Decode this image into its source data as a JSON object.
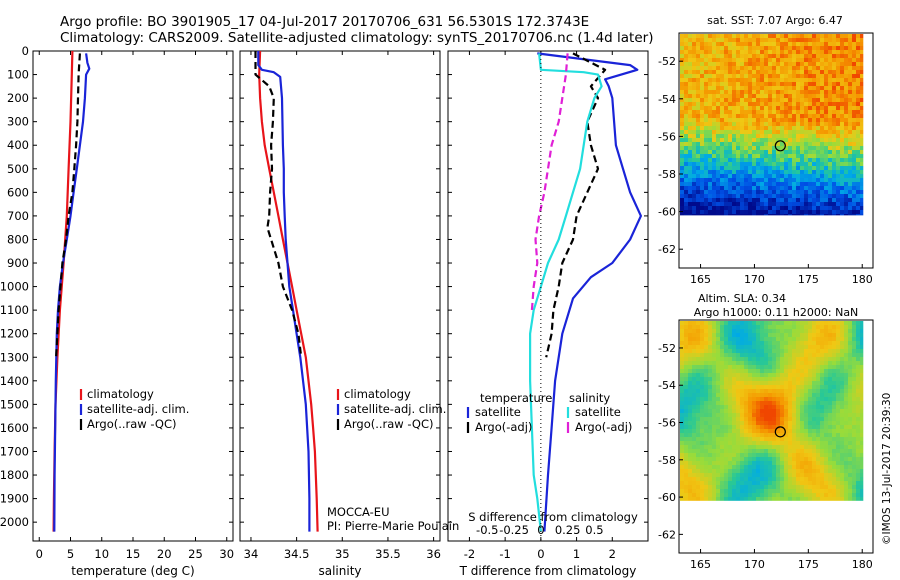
{
  "header": {
    "line1": "Argo profile: BO 3901905_17 04-Jul-2017 20170706_631 56.5301S 172.3743E",
    "line2": "Climatology: CARS2009. Satellite-adjusted climatology: synTS_20170706.nc (1.4d later)"
  },
  "annotations": {
    "mocca": "MOCCA-EU",
    "pi": "PI: Pierre-Marie Poulain",
    "sst": "sat. SST: 7.07 Argo: 6.47",
    "sla": "Altim. SLA: 0.34",
    "argo_h": "Argo h1000: 0.11 h2000: NaN",
    "imos": "©IMOS 13-Jul-2017 20:39:30"
  },
  "colors": {
    "climatology": "#e8141a",
    "satellite": "#1a24d8",
    "argo": "#000000",
    "satellite_s": "#22dede",
    "argo_s": "#e020d6"
  },
  "chart_data": [
    {
      "type": "line",
      "name": "temperature",
      "xlabel": "temperature (deg C)",
      "ylabel": "",
      "xlim": [
        -1,
        31
      ],
      "ylim": [
        2080,
        0
      ],
      "xticks": [
        0,
        5,
        10,
        15,
        20,
        25,
        30
      ],
      "yticks": [
        0,
        100,
        200,
        300,
        400,
        500,
        600,
        700,
        800,
        900,
        1000,
        1100,
        1200,
        1300,
        1400,
        1500,
        1600,
        1700,
        1800,
        1900,
        2000
      ],
      "legend": [
        "climatology",
        "satellite-adj. clim.",
        "Argo(..raw -QC)"
      ],
      "series": [
        {
          "name": "climatology",
          "style": "solid",
          "color": "climatology",
          "points": [
            [
              5.3,
              0
            ],
            [
              5.2,
              100
            ],
            [
              5.0,
              300
            ],
            [
              4.7,
              500
            ],
            [
              4.4,
              700
            ],
            [
              3.9,
              900
            ],
            [
              3.3,
              1100
            ],
            [
              2.9,
              1300
            ],
            [
              2.6,
              1500
            ],
            [
              2.45,
              1700
            ],
            [
              2.35,
              1900
            ],
            [
              2.3,
              2040
            ]
          ]
        },
        {
          "name": "satellite-adj. clim.",
          "style": "solid",
          "color": "satellite",
          "points": [
            [
              7.5,
              10
            ],
            [
              7.7,
              50
            ],
            [
              8.0,
              75
            ],
            [
              7.5,
              100
            ],
            [
              7.3,
              200
            ],
            [
              7.0,
              300
            ],
            [
              6.5,
              400
            ],
            [
              6.0,
              500
            ],
            [
              5.5,
              600
            ],
            [
              5.0,
              700
            ],
            [
              4.4,
              800
            ],
            [
              3.8,
              900
            ],
            [
              3.3,
              1000
            ],
            [
              3.0,
              1100
            ],
            [
              2.8,
              1200
            ],
            [
              2.65,
              1400
            ],
            [
              2.55,
              1600
            ],
            [
              2.45,
              1800
            ],
            [
              2.4,
              2040
            ]
          ]
        },
        {
          "name": "Argo(..raw -QC)",
          "style": "dashed",
          "color": "argo",
          "points": [
            [
              6.5,
              10
            ],
            [
              6.3,
              100
            ],
            [
              6.2,
              200
            ],
            [
              6.1,
              300
            ],
            [
              5.9,
              400
            ],
            [
              5.6,
              500
            ],
            [
              5.3,
              600
            ],
            [
              4.7,
              700
            ],
            [
              4.3,
              800
            ],
            [
              3.7,
              900
            ],
            [
              3.4,
              1000
            ],
            [
              3.1,
              1100
            ],
            [
              2.9,
              1200
            ],
            [
              2.7,
              1300
            ]
          ]
        }
      ]
    },
    {
      "type": "line",
      "name": "salinity",
      "xlabel": "salinity",
      "xlim": [
        33.88,
        36.07
      ],
      "ylim": [
        2080,
        0
      ],
      "xticks": [
        34,
        34.5,
        35,
        35.5,
        36
      ],
      "legend": [
        "climatology",
        "satellite-adj. clim.",
        "Argo(..raw -QC)"
      ],
      "series": [
        {
          "name": "climatology",
          "style": "solid",
          "color": "climatology",
          "points": [
            [
              34.1,
              0
            ],
            [
              34.09,
              100
            ],
            [
              34.1,
              200
            ],
            [
              34.12,
              300
            ],
            [
              34.15,
              400
            ],
            [
              34.2,
              500
            ],
            [
              34.25,
              600
            ],
            [
              34.3,
              700
            ],
            [
              34.35,
              800
            ],
            [
              34.4,
              900
            ],
            [
              34.45,
              1000
            ],
            [
              34.5,
              1100
            ],
            [
              34.55,
              1200
            ],
            [
              34.6,
              1300
            ],
            [
              34.63,
              1400
            ],
            [
              34.66,
              1500
            ],
            [
              34.68,
              1600
            ],
            [
              34.7,
              1700
            ],
            [
              34.71,
              1800
            ],
            [
              34.72,
              1900
            ],
            [
              34.73,
              2040
            ]
          ]
        },
        {
          "name": "satellite-adj. clim.",
          "style": "solid",
          "color": "satellite",
          "points": [
            [
              34.08,
              0
            ],
            [
              34.08,
              60
            ],
            [
              34.12,
              80
            ],
            [
              34.25,
              90
            ],
            [
              34.32,
              110
            ],
            [
              34.34,
              200
            ],
            [
              34.35,
              400
            ],
            [
              34.36,
              500
            ],
            [
              34.36,
              600
            ],
            [
              34.37,
              700
            ],
            [
              34.38,
              800
            ],
            [
              34.4,
              900
            ],
            [
              34.42,
              1000
            ],
            [
              34.46,
              1100
            ],
            [
              34.5,
              1200
            ],
            [
              34.54,
              1300
            ],
            [
              34.6,
              1500
            ],
            [
              34.63,
              1700
            ],
            [
              34.64,
              1900
            ],
            [
              34.64,
              2040
            ]
          ]
        },
        {
          "name": "Argo(..raw -QC)",
          "style": "dashed",
          "color": "argo",
          "points": [
            [
              34.05,
              0
            ],
            [
              34.05,
              100
            ],
            [
              34.2,
              150
            ],
            [
              34.25,
              200
            ],
            [
              34.24,
              300
            ],
            [
              34.22,
              400
            ],
            [
              34.23,
              500
            ],
            [
              34.21,
              600
            ],
            [
              34.2,
              700
            ],
            [
              34.18,
              750
            ],
            [
              34.22,
              800
            ],
            [
              34.3,
              900
            ],
            [
              34.35,
              1000
            ],
            [
              34.45,
              1100
            ],
            [
              34.52,
              1200
            ],
            [
              34.55,
              1300
            ]
          ]
        }
      ]
    },
    {
      "type": "line",
      "name": "difference",
      "xlabel": "T difference from climatology",
      "xlabel_top": "S difference from climatology",
      "xlim": [
        -2.6,
        3.0
      ],
      "ylim": [
        2080,
        0
      ],
      "xticks": [
        -2,
        -1,
        0,
        1,
        2
      ],
      "xticks_s": [
        [
          "-0.5",
          -1.5
        ],
        [
          "-0.25",
          -0.75
        ],
        [
          "0",
          0
        ],
        [
          "0.25",
          0.75
        ],
        [
          "0.5",
          1.5
        ]
      ],
      "legend_left_title": "temperature",
      "legend_right_title": "salinity",
      "legend_left": [
        "satellite",
        "Argo(-adj)"
      ],
      "legend_right": [
        "satellite",
        "Argo(-adj)"
      ],
      "series": [
        {
          "name": "T satellite",
          "style": "solid",
          "color": "satellite",
          "points": [
            [
              -0.1,
              10
            ],
            [
              2.5,
              60
            ],
            [
              2.7,
              80
            ],
            [
              1.8,
              120
            ],
            [
              1.9,
              150
            ],
            [
              2.0,
              200
            ],
            [
              2.1,
              400
            ],
            [
              2.3,
              500
            ],
            [
              2.5,
              600
            ],
            [
              2.8,
              700
            ],
            [
              2.5,
              800
            ],
            [
              2.0,
              900
            ],
            [
              1.4,
              960
            ],
            [
              0.9,
              1050
            ],
            [
              0.6,
              1200
            ],
            [
              0.4,
              1400
            ],
            [
              0.3,
              1600
            ],
            [
              0.2,
              1800
            ],
            [
              0.1,
              2040
            ]
          ]
        },
        {
          "name": "T Argo(-adj)",
          "style": "dashed",
          "color": "argo",
          "points": [
            [
              0.9,
              10
            ],
            [
              1.8,
              80
            ],
            [
              1.4,
              150
            ],
            [
              1.6,
              200
            ],
            [
              1.3,
              300
            ],
            [
              1.4,
              400
            ],
            [
              1.6,
              500
            ],
            [
              1.3,
              600
            ],
            [
              1.0,
              700
            ],
            [
              0.9,
              800
            ],
            [
              0.6,
              900
            ],
            [
              0.5,
              1000
            ],
            [
              0.35,
              1100
            ],
            [
              0.3,
              1200
            ],
            [
              0.15,
              1300
            ]
          ]
        },
        {
          "name": "S satellite",
          "style": "solid",
          "color": "satellite_s",
          "points": [
            [
              -0.05,
              10
            ],
            [
              0,
              80
            ],
            [
              1.2,
              90
            ],
            [
              1.6,
              100
            ],
            [
              1.7,
              150
            ],
            [
              1.5,
              200
            ],
            [
              1.3,
              300
            ],
            [
              1.2,
              400
            ],
            [
              1.1,
              500
            ],
            [
              0.9,
              600
            ],
            [
              0.7,
              700
            ],
            [
              0.5,
              800
            ],
            [
              0.2,
              900
            ],
            [
              0,
              1000
            ],
            [
              -0.2,
              1100
            ],
            [
              -0.3,
              1200
            ],
            [
              -0.3,
              1400
            ],
            [
              -0.25,
              1600
            ],
            [
              -0.2,
              1800
            ],
            [
              -0.1,
              1900
            ],
            [
              0,
              2040
            ]
          ]
        },
        {
          "name": "S Argo(-adj)",
          "style": "dashed",
          "color": "argo_s",
          "points": [
            [
              0.75,
              10
            ],
            [
              0.7,
              100
            ],
            [
              0.6,
              200
            ],
            [
              0.5,
              300
            ],
            [
              0.3,
              400
            ],
            [
              0.2,
              500
            ],
            [
              0.1,
              600
            ],
            [
              -0.05,
              700
            ],
            [
              -0.15,
              800
            ],
            [
              -0.1,
              900
            ],
            [
              -0.2,
              1000
            ],
            [
              -0.25,
              1100
            ]
          ]
        }
      ]
    },
    {
      "type": "heatmap",
      "name": "sst-map",
      "title": "sat. SST: 7.07 Argo: 6.47",
      "xlim": [
        163,
        181
      ],
      "ylim": [
        -63,
        -50.5
      ],
      "xticks": [
        165,
        170,
        175,
        180
      ],
      "yticks": [
        -52,
        -54,
        -56,
        -58,
        -60,
        -62
      ],
      "argo_marker": {
        "lon": 172.4,
        "lat": -56.5
      }
    },
    {
      "type": "heatmap",
      "name": "sla-map",
      "title": "Altim. SLA: 0.34",
      "subtitle": "Argo h1000: 0.11 h2000: NaN",
      "xlim": [
        163,
        181
      ],
      "ylim": [
        -63,
        -50.5
      ],
      "xticks": [
        165,
        170,
        175,
        180
      ],
      "yticks": [
        -52,
        -54,
        -56,
        -58,
        -60,
        -62
      ],
      "argo_marker": {
        "lon": 172.4,
        "lat": -56.5
      }
    }
  ]
}
